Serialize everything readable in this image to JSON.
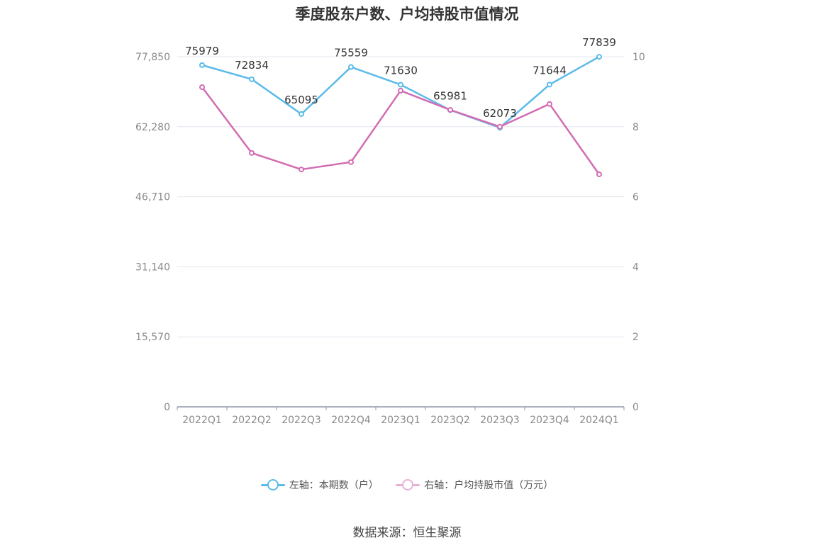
{
  "title": "季度股东户数、户均持股市值情况",
  "source": "数据来源：恒生聚源",
  "colors": {
    "series1": "#5bbbe9",
    "series2": "#d36cb2",
    "grid": "#e4e7ef",
    "axis": "#8f96a6",
    "tick_text": "#8a8a8a",
    "label_text": "#333333"
  },
  "legend": {
    "series1_label": "左轴：本期数（户）",
    "series2_label": "右轴：户均持股市值（万元）"
  },
  "chart_data": {
    "type": "line",
    "categories": [
      "2022Q1",
      "2022Q2",
      "2022Q3",
      "2022Q4",
      "2023Q1",
      "2023Q2",
      "2023Q3",
      "2023Q4",
      "2024Q1"
    ],
    "y_left": {
      "min": 0,
      "max": 77850,
      "ticks": [
        0,
        15570,
        31140,
        46710,
        62280,
        77850
      ],
      "tick_labels": [
        "0",
        "15,570",
        "31,140",
        "46,710",
        "62,280",
        "77,850"
      ]
    },
    "y_right": {
      "min": 0,
      "max": 10,
      "ticks": [
        0,
        2,
        4,
        6,
        8,
        10
      ],
      "tick_labels": [
        "0",
        "2",
        "4",
        "6",
        "8",
        "10"
      ]
    },
    "series": [
      {
        "name": "左轴：本期数（户）",
        "axis": "left",
        "values": [
          75979,
          72834,
          65095,
          75559,
          71630,
          65981,
          62073,
          71644,
          77839
        ],
        "data_labels": [
          "75979",
          "72834",
          "65095",
          "75559",
          "71630",
          "65981",
          "62073",
          "71644",
          "77839"
        ]
      },
      {
        "name": "右轴：户均持股市值（万元）",
        "axis": "right",
        "values": [
          9.13,
          7.25,
          6.78,
          6.99,
          9.03,
          8.48,
          8.0,
          8.65,
          6.64
        ]
      }
    ],
    "grid": true,
    "legend_position": "bottom"
  }
}
